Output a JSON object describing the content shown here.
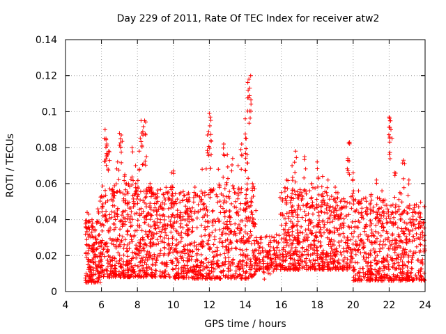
{
  "chart_data": {
    "type": "scatter",
    "title": "Day 229 of 2011, Rate Of TEC Index for receiver atw2",
    "xlabel": "GPS time / hours",
    "ylabel": "ROTI / TECUs",
    "xlim": [
      4,
      24
    ],
    "ylim": [
      0,
      0.14
    ],
    "xticks": [
      4,
      6,
      8,
      10,
      12,
      14,
      16,
      18,
      20,
      22,
      24
    ],
    "yticks": [
      0,
      0.02,
      0.04,
      0.06,
      0.08,
      0.1,
      0.12,
      0.14
    ],
    "xtick_labels": [
      "4",
      "6",
      "8",
      "10",
      "12",
      "14",
      "16",
      "18",
      "20",
      "22",
      "24"
    ],
    "ytick_labels": [
      "0",
      "0.02",
      "0.04",
      "0.06",
      "0.08",
      "0.1",
      "0.12",
      "0.14"
    ],
    "grid": true,
    "marker": "+",
    "color": "#ff0000",
    "series": [
      {
        "name": "ROTI",
        "points": [
          [
            5.2,
            0.044
          ],
          [
            5.3,
            0.043
          ],
          [
            5.5,
            0.038
          ],
          [
            5.8,
            0.046
          ],
          [
            6.0,
            0.053
          ],
          [
            6.2,
            0.09
          ],
          [
            6.25,
            0.085
          ],
          [
            6.3,
            0.082
          ],
          [
            6.4,
            0.078
          ],
          [
            6.6,
            0.056
          ],
          [
            6.9,
            0.072
          ],
          [
            7.0,
            0.088
          ],
          [
            7.1,
            0.087
          ],
          [
            7.3,
            0.065
          ],
          [
            7.5,
            0.06
          ],
          [
            7.7,
            0.08
          ],
          [
            7.9,
            0.07
          ],
          [
            8.1,
            0.078
          ],
          [
            8.2,
            0.095
          ],
          [
            8.3,
            0.089
          ],
          [
            8.4,
            0.095
          ],
          [
            8.5,
            0.075
          ],
          [
            8.7,
            0.06
          ],
          [
            9.0,
            0.054
          ],
          [
            9.3,
            0.048
          ],
          [
            9.5,
            0.052
          ],
          [
            9.9,
            0.066
          ],
          [
            10.0,
            0.067
          ],
          [
            10.4,
            0.055
          ],
          [
            10.8,
            0.05
          ],
          [
            11.2,
            0.058
          ],
          [
            11.6,
            0.068
          ],
          [
            11.9,
            0.087
          ],
          [
            12.0,
            0.099
          ],
          [
            12.05,
            0.097
          ],
          [
            12.1,
            0.076
          ],
          [
            12.5,
            0.068
          ],
          [
            12.8,
            0.082
          ],
          [
            13.0,
            0.076
          ],
          [
            13.3,
            0.074
          ],
          [
            13.6,
            0.07
          ],
          [
            13.8,
            0.082
          ],
          [
            14.0,
            0.096
          ],
          [
            14.05,
            0.085
          ],
          [
            14.1,
            0.076
          ],
          [
            14.2,
            0.118
          ],
          [
            14.25,
            0.113
          ],
          [
            14.3,
            0.12
          ],
          [
            14.4,
            0.06
          ],
          [
            14.6,
            0.03
          ],
          [
            15.0,
            0.022
          ],
          [
            15.3,
            0.026
          ],
          [
            15.6,
            0.03
          ],
          [
            16.0,
            0.055
          ],
          [
            16.3,
            0.062
          ],
          [
            16.6,
            0.07
          ],
          [
            16.8,
            0.078
          ],
          [
            17.1,
            0.055
          ],
          [
            17.3,
            0.075
          ],
          [
            17.7,
            0.06
          ],
          [
            18.0,
            0.072
          ],
          [
            18.3,
            0.064
          ],
          [
            18.6,
            0.062
          ],
          [
            19.0,
            0.058
          ],
          [
            19.3,
            0.05
          ],
          [
            19.7,
            0.074
          ],
          [
            19.8,
            0.083
          ],
          [
            20.0,
            0.066
          ],
          [
            20.3,
            0.056
          ],
          [
            20.7,
            0.052
          ],
          [
            21.0,
            0.054
          ],
          [
            21.3,
            0.062
          ],
          [
            21.6,
            0.056
          ],
          [
            22.0,
            0.097
          ],
          [
            22.05,
            0.095
          ],
          [
            22.1,
            0.09
          ],
          [
            22.3,
            0.066
          ],
          [
            22.6,
            0.055
          ],
          [
            22.8,
            0.073
          ],
          [
            23.1,
            0.062
          ],
          [
            23.4,
            0.048
          ],
          [
            23.7,
            0.044
          ],
          [
            23.9,
            0.038
          ]
        ],
        "cloud": [
          {
            "from": 5.1,
            "to": 6.0,
            "min": 0.005,
            "max": 0.04,
            "count": 160
          },
          {
            "from": 6.0,
            "to": 8.0,
            "min": 0.008,
            "max": 0.06,
            "count": 320
          },
          {
            "from": 8.0,
            "to": 10.0,
            "min": 0.008,
            "max": 0.058,
            "count": 320
          },
          {
            "from": 10.0,
            "to": 12.0,
            "min": 0.007,
            "max": 0.056,
            "count": 300
          },
          {
            "from": 12.0,
            "to": 14.6,
            "min": 0.007,
            "max": 0.058,
            "count": 360
          },
          {
            "from": 14.6,
            "to": 16.0,
            "min": 0.012,
            "max": 0.032,
            "count": 120
          },
          {
            "from": 16.0,
            "to": 18.0,
            "min": 0.012,
            "max": 0.058,
            "count": 300
          },
          {
            "from": 18.0,
            "to": 20.0,
            "min": 0.012,
            "max": 0.056,
            "count": 280
          },
          {
            "from": 20.0,
            "to": 22.0,
            "min": 0.006,
            "max": 0.052,
            "count": 300
          },
          {
            "from": 22.0,
            "to": 24.0,
            "min": 0.006,
            "max": 0.05,
            "count": 280
          }
        ]
      }
    ]
  }
}
